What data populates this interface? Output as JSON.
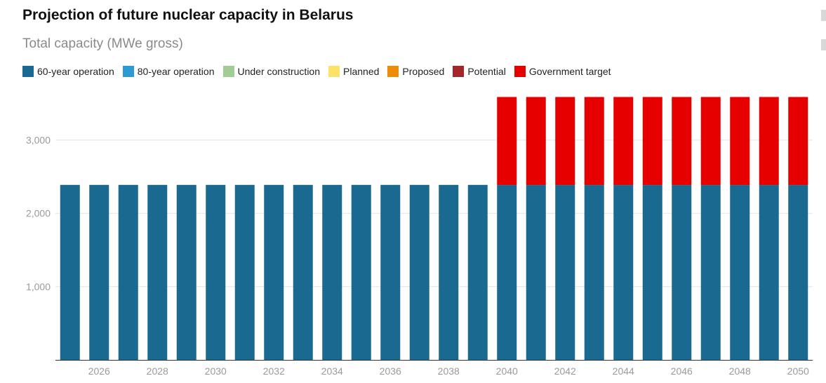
{
  "header": {
    "title": "Projection of future nuclear capacity in Belarus",
    "subtitle": "Total capacity (MWe gross)"
  },
  "legend": [
    {
      "label": "60-year operation",
      "color": "#1a6990"
    },
    {
      "label": "80-year operation",
      "color": "#2e9ad4"
    },
    {
      "label": "Under construction",
      "color": "#a2cd92"
    },
    {
      "label": "Planned",
      "color": "#fde26a"
    },
    {
      "label": "Proposed",
      "color": "#ef8b0a"
    },
    {
      "label": "Potential",
      "color": "#a3262b"
    },
    {
      "label": "Government target",
      "color": "#e60000"
    }
  ],
  "chart_data": {
    "type": "bar",
    "stacked": true,
    "title": "Projection of future nuclear capacity in Belarus",
    "subtitle": "Total capacity (MWe gross)",
    "xlabel": "",
    "ylabel": "",
    "ylim": [
      0,
      3600
    ],
    "y_ticks": [
      1000,
      2000,
      3000
    ],
    "y_tick_labels": [
      "1,000",
      "2,000",
      "3,000"
    ],
    "x_tick_labels": [
      "2026",
      "2028",
      "2030",
      "2032",
      "2034",
      "2036",
      "2038",
      "2040",
      "2042",
      "2044",
      "2046",
      "2048",
      "2050"
    ],
    "grid": true,
    "legend_position": "top",
    "categories": [
      "2025",
      "2026",
      "2027",
      "2028",
      "2029",
      "2030",
      "2031",
      "2032",
      "2033",
      "2034",
      "2035",
      "2036",
      "2037",
      "2038",
      "2039",
      "2040",
      "2041",
      "2042",
      "2043",
      "2044",
      "2045",
      "2046",
      "2047",
      "2048",
      "2049",
      "2050"
    ],
    "series": [
      {
        "name": "60-year operation",
        "color": "#1a6990",
        "values": [
          2388,
          2388,
          2388,
          2388,
          2388,
          2388,
          2388,
          2388,
          2388,
          2388,
          2388,
          2388,
          2388,
          2388,
          2388,
          2388,
          2388,
          2388,
          2388,
          2388,
          2388,
          2388,
          2388,
          2388,
          2388,
          2388
        ]
      },
      {
        "name": "80-year operation",
        "color": "#2e9ad4",
        "values": [
          0,
          0,
          0,
          0,
          0,
          0,
          0,
          0,
          0,
          0,
          0,
          0,
          0,
          0,
          0,
          0,
          0,
          0,
          0,
          0,
          0,
          0,
          0,
          0,
          0,
          0
        ]
      },
      {
        "name": "Under construction",
        "color": "#a2cd92",
        "values": [
          0,
          0,
          0,
          0,
          0,
          0,
          0,
          0,
          0,
          0,
          0,
          0,
          0,
          0,
          0,
          0,
          0,
          0,
          0,
          0,
          0,
          0,
          0,
          0,
          0,
          0
        ]
      },
      {
        "name": "Planned",
        "color": "#fde26a",
        "values": [
          0,
          0,
          0,
          0,
          0,
          0,
          0,
          0,
          0,
          0,
          0,
          0,
          0,
          0,
          0,
          0,
          0,
          0,
          0,
          0,
          0,
          0,
          0,
          0,
          0,
          0
        ]
      },
      {
        "name": "Proposed",
        "color": "#ef8b0a",
        "values": [
          0,
          0,
          0,
          0,
          0,
          0,
          0,
          0,
          0,
          0,
          0,
          0,
          0,
          0,
          0,
          0,
          0,
          0,
          0,
          0,
          0,
          0,
          0,
          0,
          0,
          0
        ]
      },
      {
        "name": "Potential",
        "color": "#a3262b",
        "values": [
          0,
          0,
          0,
          0,
          0,
          0,
          0,
          0,
          0,
          0,
          0,
          0,
          0,
          0,
          0,
          0,
          0,
          0,
          0,
          0,
          0,
          0,
          0,
          0,
          0,
          0
        ]
      },
      {
        "name": "Government target",
        "color": "#e60000",
        "values": [
          0,
          0,
          0,
          0,
          0,
          0,
          0,
          0,
          0,
          0,
          0,
          0,
          0,
          0,
          0,
          1200,
          1200,
          1200,
          1200,
          1200,
          1200,
          1200,
          1200,
          1200,
          1200,
          1200
        ]
      }
    ]
  }
}
